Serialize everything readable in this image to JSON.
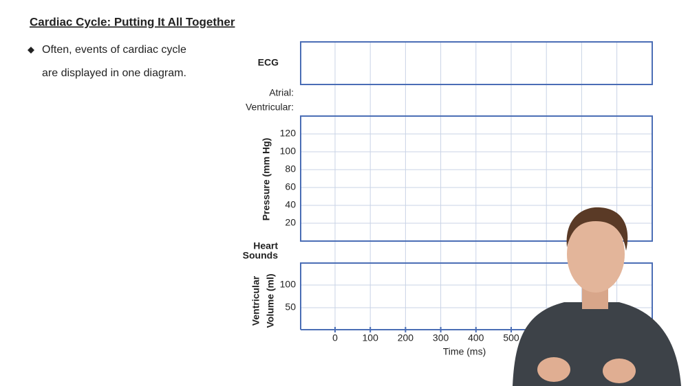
{
  "header": {
    "title": "Cardiac Cycle: Putting It All Together"
  },
  "bullets": [
    {
      "lines": [
        "Often, events of cardiac cycle",
        "are displayed in one diagram."
      ]
    }
  ],
  "diagram": {
    "ecg_label": "ECG",
    "atrial_label": "Atrial:",
    "ventricular_label": "Ventricular:",
    "pressure_axis_label": "Pressure (mm Hg)",
    "pressure_ticks": [
      120,
      100,
      80,
      60,
      40,
      20
    ],
    "heart_sounds_label": [
      "Heart",
      "Sounds"
    ],
    "volume_axis_label": [
      "Ventricular",
      "Volume (ml)"
    ],
    "volume_ticks": [
      100,
      50
    ],
    "time_ticks": [
      0,
      100,
      200,
      300,
      400,
      500
    ],
    "time_axis_label": "Time (ms)"
  }
}
